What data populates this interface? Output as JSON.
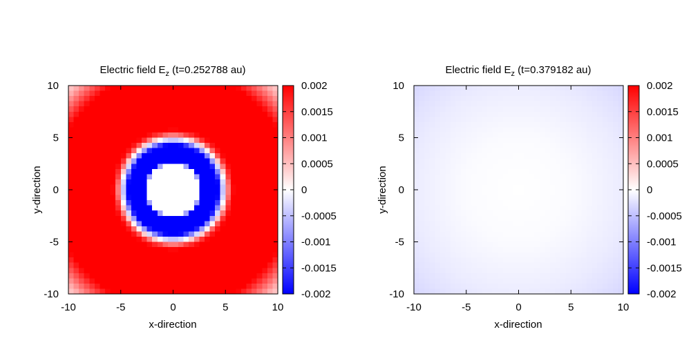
{
  "chart_data": [
    {
      "type": "heatmap",
      "title_main": "Electric field E",
      "title_sub": "z",
      "title_suffix": " (t=0.252788 au)",
      "xlabel": "x-direction",
      "ylabel": "y-direction",
      "xlim": [
        -10,
        10
      ],
      "ylim": [
        -10,
        10
      ],
      "xticks": [
        "-10",
        "-5",
        "0",
        "5",
        "10"
      ],
      "yticks": [
        "-10",
        "-5",
        "0",
        "5",
        "10"
      ],
      "grid_cells": 40,
      "colorbar": {
        "range": [
          -0.002,
          0.002
        ],
        "ticks": [
          "0.002",
          "0.0015",
          "0.001",
          "0.0005",
          "0",
          "-0.0005",
          "-0.001",
          "-0.0015",
          "-0.002"
        ],
        "colors": [
          "#0000ff",
          "#ffffff",
          "#ff0000"
        ]
      },
      "field_profile": {
        "description_radius_units": "r in spatial units",
        "points": [
          {
            "r": 0.0,
            "value": 0.0
          },
          {
            "r": 2.5,
            "value": 0.0
          },
          {
            "r": 2.7,
            "value": -0.002
          },
          {
            "r": 4.3,
            "value": -0.002
          },
          {
            "r": 4.7,
            "value": -0.0006
          },
          {
            "r": 5.0,
            "value": 0.0002
          },
          {
            "r": 5.4,
            "value": 0.0015
          },
          {
            "r": 5.8,
            "value": 0.002
          },
          {
            "r": 11.5,
            "value": 0.002
          },
          {
            "r": 12.5,
            "value": 0.0013
          },
          {
            "r": 13.5,
            "value": 0.0006
          },
          {
            "r": 14.2,
            "value": 0.0003
          }
        ]
      }
    },
    {
      "type": "heatmap",
      "title_main": "Electric field E",
      "title_sub": "z",
      "title_suffix": " (t=0.379182 au)",
      "xlabel": "x-direction",
      "ylabel": "y-direction",
      "xlim": [
        -10,
        10
      ],
      "ylim": [
        -10,
        10
      ],
      "xticks": [
        "-10",
        "-5",
        "0",
        "5",
        "10"
      ],
      "yticks": [
        "-10",
        "-5",
        "0",
        "5",
        "10"
      ],
      "grid_cells": 40,
      "colorbar": {
        "range": [
          -0.002,
          0.002
        ],
        "ticks": [
          "0.002",
          "0.0015",
          "0.001",
          "0.0005",
          "0",
          "-0.0005",
          "-0.001",
          "-0.0015",
          "-0.002"
        ],
        "colors": [
          "#0000ff",
          "#ffffff",
          "#ff0000"
        ]
      },
      "field_profile": {
        "description_radius_units": "r in spatial units",
        "points": [
          {
            "r": 0.0,
            "value": 0.0
          },
          {
            "r": 5.0,
            "value": -3e-05
          },
          {
            "r": 8.0,
            "value": -0.0001
          },
          {
            "r": 10.0,
            "value": -0.00015
          },
          {
            "r": 12.0,
            "value": -0.00022
          },
          {
            "r": 14.2,
            "value": -0.00032
          }
        ]
      }
    }
  ]
}
